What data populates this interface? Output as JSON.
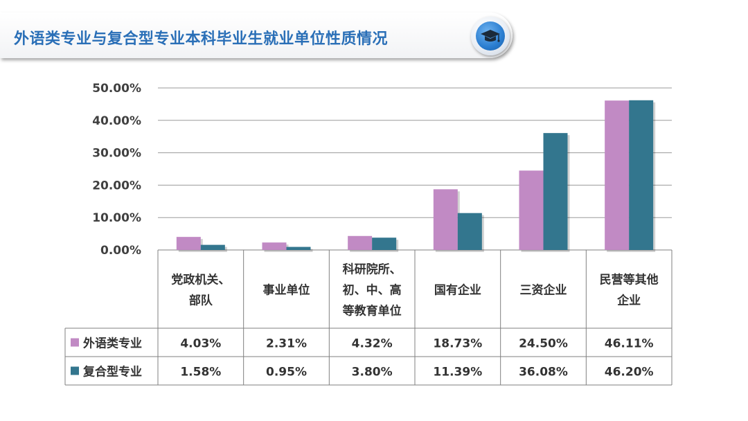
{
  "header": {
    "title": "外语类专业与复合型专业本科毕业生就业单位性质情况",
    "icon": "graduation-cap-icon"
  },
  "chart_data": {
    "type": "bar",
    "categories": [
      [
        "党政机关、",
        "部队"
      ],
      [
        "事业单位"
      ],
      [
        "科研院所、",
        "初、中、高",
        "等教育单位"
      ],
      [
        "国有企业"
      ],
      [
        "三资企业"
      ],
      [
        "民营等其他",
        "企业"
      ]
    ],
    "series": [
      {
        "name": "外语类专业",
        "color": "#c18ac4",
        "values": [
          4.03,
          2.31,
          4.32,
          18.73,
          24.5,
          46.11
        ],
        "labels": [
          "4.03%",
          "2.31%",
          "4.32%",
          "18.73%",
          "24.50%",
          "46.11%"
        ]
      },
      {
        "name": "复合型专业",
        "color": "#33768e",
        "values": [
          1.58,
          0.95,
          3.8,
          11.39,
          36.08,
          46.2
        ],
        "labels": [
          "1.58%",
          "0.95%",
          "3.80%",
          "11.39%",
          "36.08%",
          "46.20%"
        ]
      }
    ],
    "yticks": [
      "0.00%",
      "10.00%",
      "20.00%",
      "30.00%",
      "40.00%",
      "50.00%"
    ],
    "ylim": [
      0,
      50
    ],
    "grid": true,
    "legend": "data-table"
  }
}
